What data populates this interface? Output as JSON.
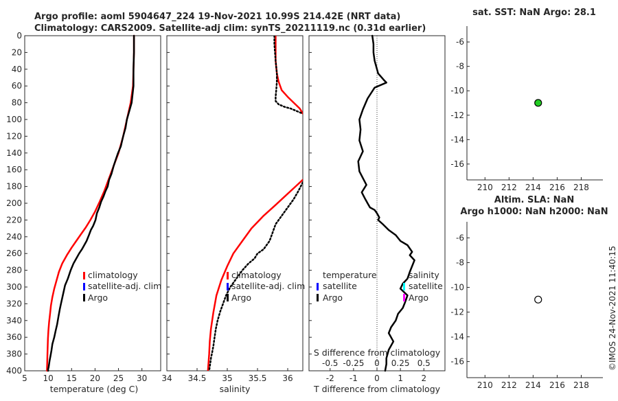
{
  "title": {
    "line1": "Argo profile: aoml 5904647_224 19-Nov-2021 10.99S 214.42E (NRT data)",
    "line2": "Climatology: CARS2009. Satellite-adj clim: synTS_20211119.nc (0.31d earlier)"
  },
  "timestamp": "©IMOS 24-Nov-2021 11:40:15",
  "colors": {
    "climatology": "#ff0000",
    "satellite": "#0000ff",
    "argo": "#000000",
    "satellite_salinity": "#00ffff",
    "argo_salinity": "#ff00ff",
    "marker_sst": "#22cc22"
  },
  "chart_data": [
    {
      "id": "temperature",
      "type": "line",
      "xlabel": "temperature (deg C)",
      "xlim": [
        5,
        34
      ],
      "xticks": [
        "5",
        "10",
        "15",
        "20",
        "25",
        "30"
      ],
      "ylim": [
        0,
        400
      ],
      "yticks": [
        "0",
        "20",
        "40",
        "60",
        "80",
        "100",
        "120",
        "140",
        "160",
        "180",
        "200",
        "220",
        "240",
        "260",
        "280",
        "300",
        "320",
        "340",
        "360",
        "380",
        "400"
      ],
      "legend": [
        "climatology",
        "satellite-adj. clim",
        "Argo"
      ],
      "series": [
        {
          "name": "climatology",
          "x": [
            28.3,
            28.3,
            28.2,
            28.1,
            27.6,
            26.8,
            26,
            25,
            24,
            23,
            22,
            21,
            20,
            19,
            18,
            17,
            16,
            15,
            14,
            13,
            12.3,
            11.8,
            11.3,
            10.9,
            10.6,
            10.4,
            10.2,
            10.05,
            9.95,
            9.85,
            9.75
          ],
          "y": [
            0,
            20,
            40,
            60,
            80,
            100,
            120,
            140,
            155,
            170,
            185,
            198,
            210,
            220,
            229,
            237,
            245,
            253,
            262,
            272,
            282,
            292,
            302,
            312,
            322,
            332,
            342,
            352,
            362,
            380,
            400
          ]
        },
        {
          "name": "Argo",
          "x": [
            28.3,
            28.3,
            28.2,
            28.2,
            27.8,
            27.2,
            26.8,
            26.5,
            26,
            25.5,
            24.9,
            24.4,
            24,
            23.5,
            23,
            22.7,
            22.2,
            21.8,
            21.3,
            20.9,
            20.4,
            20.1,
            19.6,
            19.1,
            18.7,
            18.2,
            17.7,
            17.2,
            16.6,
            16,
            15.4,
            14.8,
            14.2,
            13.6,
            13.2,
            12.8,
            12.5,
            12.2,
            11.9,
            11.6,
            11.3,
            10.9,
            10.7,
            10.5,
            10.3,
            10.2,
            10.1,
            10,
            10
          ],
          "y": [
            0,
            20,
            40,
            60,
            80,
            92,
            100,
            110,
            120,
            132,
            140,
            148,
            155,
            165,
            172,
            180,
            186,
            192,
            198,
            205,
            212,
            220,
            227,
            232,
            238,
            245,
            250,
            255,
            260,
            266,
            272,
            280,
            290,
            298,
            308,
            318,
            326,
            335,
            345,
            352,
            360,
            368,
            376,
            382,
            388,
            392,
            396,
            398,
            400
          ]
        }
      ]
    },
    {
      "id": "salinity",
      "type": "line",
      "xlabel": "salinity",
      "xlim": [
        34,
        36.25
      ],
      "xticks": [
        "34",
        "34.5",
        "35",
        "35.5",
        "36"
      ],
      "ylim": [
        0,
        400
      ],
      "legend": [
        "climatology",
        "satellite-adj. clim",
        "Argo"
      ],
      "series": [
        {
          "name": "climatology",
          "x": [
            35.8,
            35.8,
            35.8,
            35.82,
            35.85,
            35.9,
            36,
            36.1,
            36.2,
            36.25
          ],
          "y": [
            0,
            10,
            30,
            45,
            55,
            65,
            73,
            80,
            87,
            93
          ]
        },
        {
          "name": "climatology-deep",
          "x": [
            36.25,
            36.1,
            35.95,
            35.8,
            35.6,
            35.4,
            35.25,
            35.1,
            35,
            34.9,
            34.82,
            34.77,
            34.73,
            34.71,
            34.7,
            34.69,
            34.68
          ],
          "y": [
            172,
            182,
            192,
            202,
            215,
            230,
            245,
            260,
            275,
            292,
            310,
            330,
            350,
            365,
            380,
            390,
            400
          ]
        },
        {
          "name": "Argo",
          "x": [
            35.78,
            35.78,
            35.8,
            35.82,
            35.82,
            35.81,
            35.8,
            35.8,
            35.85,
            35.95,
            36.05,
            36.15,
            36.25
          ],
          "y": [
            0,
            10,
            30,
            45,
            55,
            65,
            73,
            78,
            82,
            85,
            87,
            90,
            93
          ]
        },
        {
          "name": "Argo-deep",
          "x": [
            36.25,
            36.18,
            36.1,
            36,
            35.9,
            35.8,
            35.75,
            35.7,
            35.6,
            35.5,
            35.45,
            35.35,
            35.25,
            35.15,
            35.05,
            34.98,
            34.93,
            34.88,
            34.84,
            34.81,
            34.79,
            34.77,
            34.75,
            34.73,
            34.72,
            34.71,
            34.7
          ],
          "y": [
            175,
            185,
            195,
            205,
            215,
            225,
            235,
            245,
            255,
            260,
            266,
            272,
            280,
            290,
            300,
            310,
            320,
            330,
            340,
            350,
            360,
            370,
            378,
            385,
            390,
            395,
            400
          ]
        }
      ]
    },
    {
      "id": "difference",
      "type": "line",
      "xlabel": "T difference from climatology",
      "xlim": [
        -2.9,
        2.9
      ],
      "xticks": [
        "-2",
        "-1",
        "0",
        "1",
        "2"
      ],
      "secondary_xlabel": "S difference from climatology",
      "secondary_xticks": [
        "-0.5",
        "-0.25",
        "0",
        "0.25",
        "0.5"
      ],
      "ylim": [
        0,
        400
      ],
      "legend_temperature": [
        "temperature",
        "satellite",
        "Argo"
      ],
      "legend_salinity": [
        "salinity",
        "satellite",
        "Argo"
      ],
      "series": [
        {
          "name": "T difference",
          "x": [
            -0.2,
            -0.15,
            -0.15,
            -0.1,
            0.05,
            0.3,
            0.4,
            -0.1,
            -0.4,
            -0.6,
            -0.75,
            -0.7,
            -0.75,
            -0.6,
            -0.8,
            -0.75,
            -0.6,
            -0.45,
            -0.65,
            -0.5,
            -0.4,
            -0.3,
            -0.1,
            0.0,
            0.1,
            0.05,
            0.25,
            0.5,
            0.8,
            1.0,
            1.3,
            1.5,
            1.4,
            1.6,
            1.5,
            1.4,
            1.3,
            1.1,
            1.0,
            1.3,
            1.2,
            1.1,
            0.9,
            0.8,
            0.6,
            0.5,
            0.7,
            0.5,
            0.4,
            0.4,
            0.35
          ],
          "y": [
            0,
            10,
            20,
            30,
            45,
            53,
            56,
            62,
            75,
            88,
            100,
            112,
            125,
            138,
            150,
            162,
            170,
            178,
            187,
            195,
            200,
            205,
            208,
            212,
            217,
            220,
            225,
            232,
            238,
            245,
            250,
            258,
            262,
            268,
            275,
            282,
            290,
            296,
            302,
            310,
            318,
            325,
            332,
            340,
            348,
            355,
            365,
            375,
            385,
            392,
            400
          ]
        }
      ],
      "reference_line_x": 0
    },
    {
      "id": "sst-map",
      "type": "scatter",
      "title": "sat. SST: NaN Argo: 28.1",
      "xlim": [
        208.5,
        219.8
      ],
      "xticks": [
        "210",
        "212",
        "214",
        "216",
        "218"
      ],
      "ylim": [
        -17.3,
        -4.7
      ],
      "yticks": [
        "-6",
        "-8",
        "-10",
        "-12",
        "-14",
        "-16"
      ],
      "points": [
        {
          "x": 214.42,
          "y": -10.99,
          "filled": true
        }
      ]
    },
    {
      "id": "sla-map",
      "type": "scatter",
      "title_line1": "Altim. SLA: NaN",
      "title_line2": "Argo h1000: NaN h2000: NaN",
      "xlim": [
        208.5,
        219.8
      ],
      "xticks": [
        "210",
        "212",
        "214",
        "216",
        "218"
      ],
      "ylim": [
        -17.3,
        -4.7
      ],
      "yticks": [
        "-6",
        "-8",
        "-10",
        "-12",
        "-14",
        "-16"
      ],
      "points": [
        {
          "x": 214.42,
          "y": -10.99,
          "filled": false
        }
      ]
    }
  ]
}
